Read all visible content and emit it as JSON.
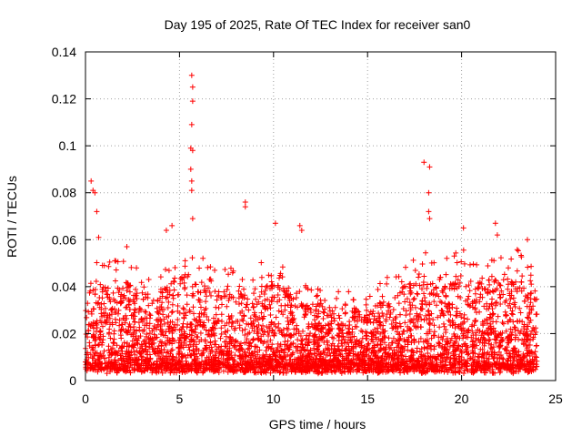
{
  "chart_data": {
    "type": "scatter",
    "title": "Day 195 of 2025, Rate Of TEC Index for receiver san0",
    "xlabel": "GPS time / hours",
    "ylabel": "ROTI / TECUs",
    "xlim": [
      0,
      25
    ],
    "ylim": [
      0,
      0.14
    ],
    "x_ticks": [
      "0",
      "5",
      "10",
      "15",
      "20",
      "25"
    ],
    "y_ticks": [
      "0",
      "0.02",
      "0.04",
      "0.06",
      "0.08",
      "0.1",
      "0.12",
      "0.14"
    ],
    "grid": true,
    "marker": "plus",
    "marker_color": "#ff0000",
    "sample_points": [
      {
        "x": 0.3,
        "y": 0.085
      },
      {
        "x": 0.4,
        "y": 0.081
      },
      {
        "x": 0.5,
        "y": 0.08
      },
      {
        "x": 0.6,
        "y": 0.072
      },
      {
        "x": 0.7,
        "y": 0.061
      },
      {
        "x": 1.0,
        "y": 0.049
      },
      {
        "x": 2.2,
        "y": 0.057
      },
      {
        "x": 4.3,
        "y": 0.064
      },
      {
        "x": 4.6,
        "y": 0.066
      },
      {
        "x": 5.65,
        "y": 0.13
      },
      {
        "x": 5.7,
        "y": 0.125
      },
      {
        "x": 5.7,
        "y": 0.119
      },
      {
        "x": 5.65,
        "y": 0.109
      },
      {
        "x": 5.6,
        "y": 0.099
      },
      {
        "x": 5.7,
        "y": 0.098
      },
      {
        "x": 5.6,
        "y": 0.09
      },
      {
        "x": 5.65,
        "y": 0.085
      },
      {
        "x": 5.65,
        "y": 0.081
      },
      {
        "x": 5.7,
        "y": 0.069
      },
      {
        "x": 8.5,
        "y": 0.076
      },
      {
        "x": 8.5,
        "y": 0.074
      },
      {
        "x": 10.1,
        "y": 0.067
      },
      {
        "x": 11.4,
        "y": 0.066
      },
      {
        "x": 11.5,
        "y": 0.064
      },
      {
        "x": 18.0,
        "y": 0.093
      },
      {
        "x": 18.3,
        "y": 0.091
      },
      {
        "x": 18.25,
        "y": 0.08
      },
      {
        "x": 18.25,
        "y": 0.072
      },
      {
        "x": 18.3,
        "y": 0.069
      },
      {
        "x": 20.1,
        "y": 0.065
      },
      {
        "x": 21.8,
        "y": 0.067
      },
      {
        "x": 21.9,
        "y": 0.062
      },
      {
        "x": 23.5,
        "y": 0.06
      }
    ],
    "density_profile": [
      {
        "x": 0,
        "p95": 0.045
      },
      {
        "x": 1,
        "p95": 0.04
      },
      {
        "x": 2,
        "p95": 0.042
      },
      {
        "x": 3,
        "p95": 0.038
      },
      {
        "x": 4,
        "p95": 0.04
      },
      {
        "x": 5,
        "p95": 0.043
      },
      {
        "x": 6,
        "p95": 0.044
      },
      {
        "x": 7,
        "p95": 0.038
      },
      {
        "x": 8,
        "p95": 0.04
      },
      {
        "x": 9,
        "p95": 0.038
      },
      {
        "x": 10,
        "p95": 0.045
      },
      {
        "x": 11,
        "p95": 0.037
      },
      {
        "x": 12,
        "p95": 0.032
      },
      {
        "x": 13,
        "p95": 0.03
      },
      {
        "x": 14,
        "p95": 0.033
      },
      {
        "x": 15,
        "p95": 0.03
      },
      {
        "x": 16,
        "p95": 0.035
      },
      {
        "x": 17,
        "p95": 0.04
      },
      {
        "x": 18,
        "p95": 0.045
      },
      {
        "x": 19,
        "p95": 0.043
      },
      {
        "x": 20,
        "p95": 0.045
      },
      {
        "x": 21,
        "p95": 0.04
      },
      {
        "x": 22,
        "p95": 0.045
      },
      {
        "x": 23,
        "p95": 0.045
      },
      {
        "x": 24,
        "p95": 0.04
      }
    ],
    "x_data_range": [
      0,
      24
    ],
    "typical_min": 0.005
  }
}
